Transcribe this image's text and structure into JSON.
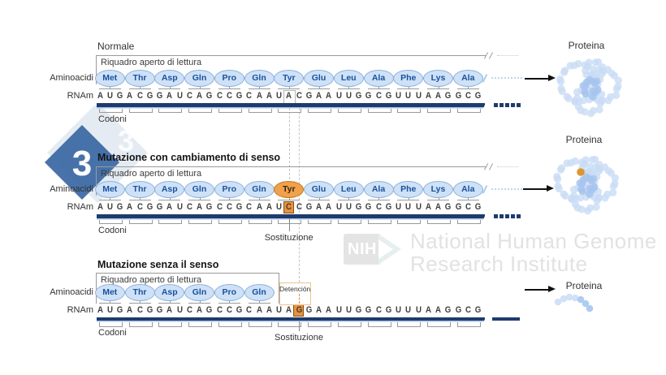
{
  "watermark": {
    "nih_acronym": "NIH",
    "institute_line1": "National Human Genome",
    "institute_line2": "Research Institute",
    "logo_digit": "3"
  },
  "colors": {
    "aminoacid_fill": "#cfe1f6",
    "aminoacid_border": "#8ab1dd",
    "aminoacid_text": "#17519f",
    "mutant_fill": "#f0a14e",
    "mutant_border": "#c4761f",
    "mutant_text": "#3a2607",
    "highlight_fill": "#e8923c",
    "highlight_border": "#8a4d12",
    "mrna_bar": "#1e3b6d",
    "chain": "#aecdec",
    "protein_bead": "#c9dcf5",
    "protein_bead_dark": "#a6c4ee",
    "mutation_dot": "#dd9530",
    "stop_box_border": "#eec28e",
    "diamond_dark": "#3b67a4",
    "diamond_light": "#d3dde9"
  },
  "sections": [
    {
      "title": "Normale",
      "frame_label": "Riquadro aperto di lettura",
      "amino_label": "Aminoacidi",
      "rna_label": "RNAm",
      "codons_label": "Codoni",
      "protein_label": "Proteina",
      "amino_acids": [
        "Met",
        "Thr",
        "Asp",
        "Gln",
        "Pro",
        "Gln",
        "Tyr",
        "Glu",
        "Leu",
        "Ala",
        "Phe",
        "Lys",
        "Ala"
      ],
      "codons": [
        "AUG",
        "ACG",
        "GAU",
        "CAG",
        "CCG",
        "CAA",
        "UAC",
        "GAA",
        "UUG",
        "GCG",
        "UUU",
        "AAG",
        "GCG"
      ],
      "normal_site_index": 19,
      "protein": "folded"
    },
    {
      "title": "Mutazione con cambiamento di senso",
      "frame_label": "Riquadro aperto di lettura",
      "amino_label": "Aminoacidi",
      "rna_label": "RNAm",
      "codons_label": "Codoni",
      "protein_label": "Proteina",
      "substitution_label": "Sostituzione",
      "amino_acids": [
        "Met",
        "Thr",
        "Asp",
        "Gln",
        "Pro",
        "Gln",
        "Tyr",
        "Glu",
        "Leu",
        "Ala",
        "Phe",
        "Lys",
        "Ala"
      ],
      "mutated_amino_index": 6,
      "codons": [
        "AUG",
        "ACG",
        "GAU",
        "CAG",
        "CCG",
        "CAA",
        "UCC",
        "GAA",
        "UUG",
        "GCG",
        "UUU",
        "AAG",
        "GCG"
      ],
      "substitution_site_index": 19,
      "protein": "folded-mutated"
    },
    {
      "title": "Mutazione senza il senso",
      "frame_label": "Riquadro aperto di lettura",
      "amino_label": "Aminoacidi",
      "rna_label": "RNAm",
      "codons_label": "Codoni",
      "protein_label": "Proteina",
      "substitution_label": "Sostituzione",
      "stop_label": "Detención",
      "amino_acids": [
        "Met",
        "Thr",
        "Asp",
        "Gln",
        "Pro",
        "Gln"
      ],
      "codons": [
        "AUG",
        "ACG",
        "GAU",
        "CAG",
        "CCG",
        "CAA",
        "UAG",
        "GAA",
        "UUG",
        "GCG",
        "UUU",
        "AAG",
        "GCG"
      ],
      "substitution_site_index": 20,
      "protein": "truncated"
    }
  ]
}
